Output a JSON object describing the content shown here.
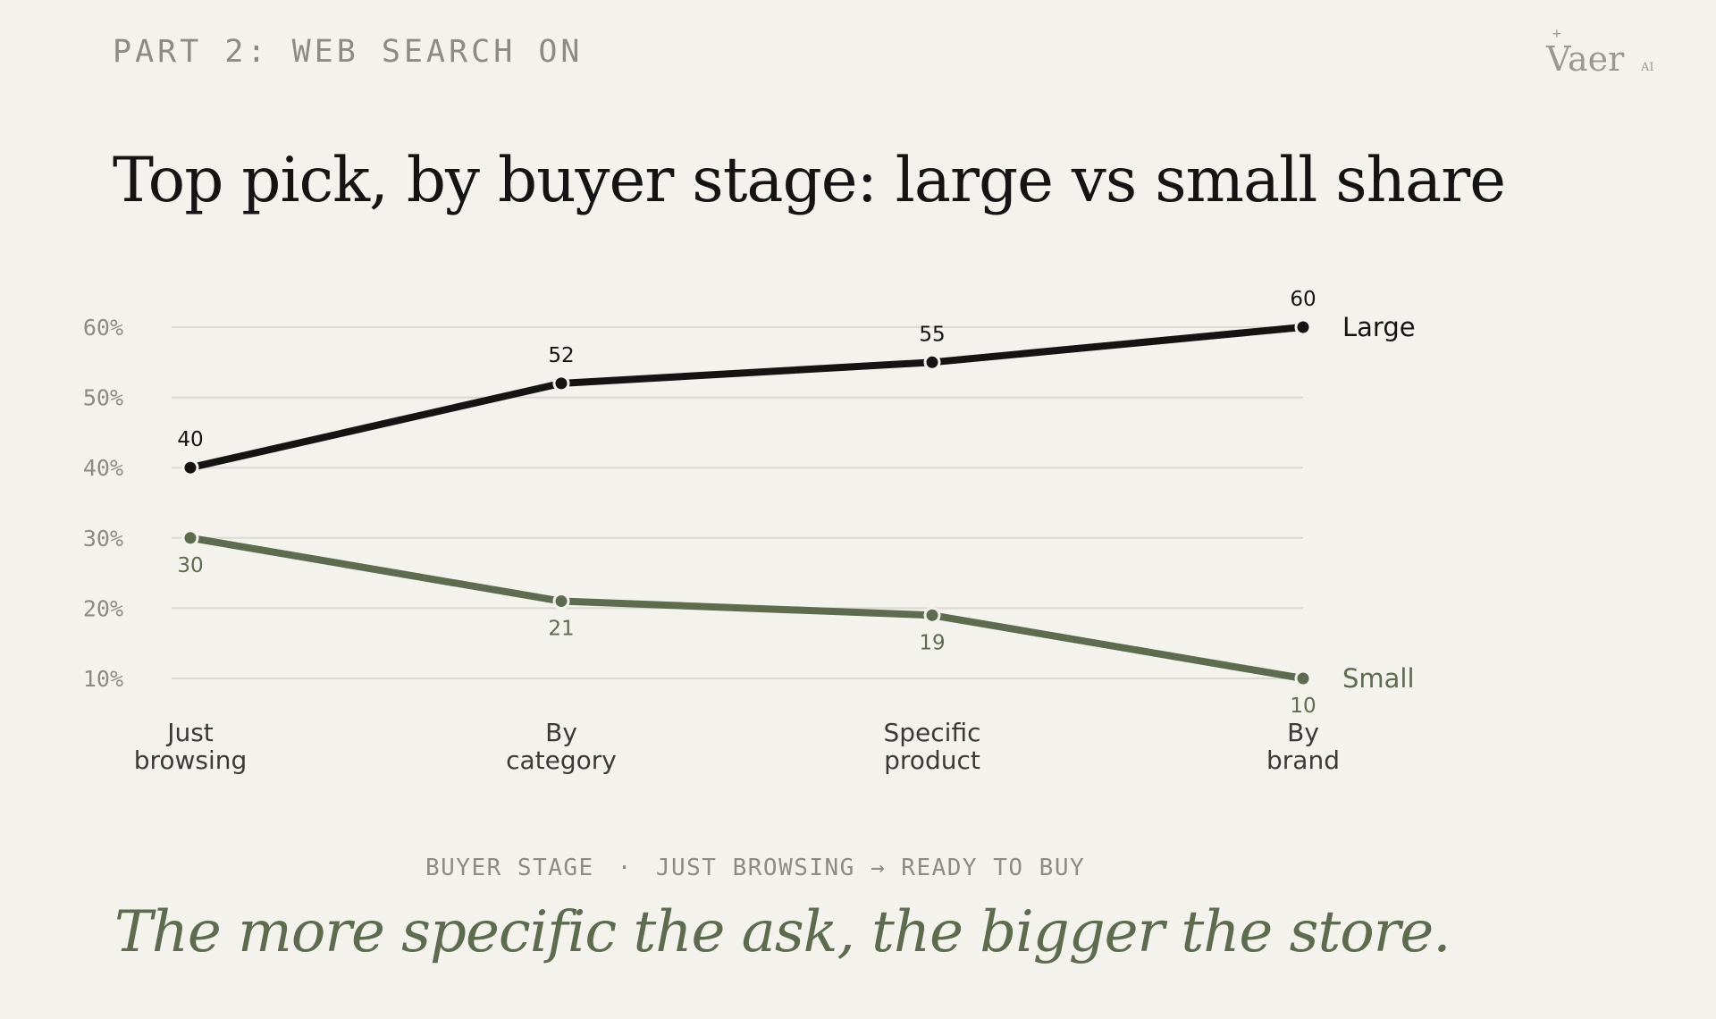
{
  "header": {
    "eyebrow": "PART 2: WEB SEARCH ON",
    "logo_text": "Vaer",
    "logo_superscript": "AI",
    "logo_mark": "+"
  },
  "title": "Top pick, by buyer stage: large vs small share",
  "chart_data": {
    "type": "line",
    "title": "Top pick, by buyer stage: large vs small share",
    "categories": [
      [
        "Just",
        "browsing"
      ],
      [
        "By",
        "category"
      ],
      [
        "Specific",
        "product"
      ],
      [
        "By",
        "brand"
      ]
    ],
    "series": [
      {
        "name": "Large",
        "values": [
          40,
          52,
          55,
          60
        ],
        "color": "#141414"
      },
      {
        "name": "Small",
        "values": [
          30,
          21,
          19,
          10
        ],
        "color": "#5d6b4f"
      }
    ],
    "yticks": [
      10,
      20,
      30,
      40,
      50,
      60
    ],
    "ytick_suffix": "%",
    "ylim": [
      10,
      60
    ],
    "grid": true,
    "legend": "direct labels at line ends",
    "xlabel": "BUYER STAGE",
    "xlabel_note": "JUST BROWSING → READY TO BUY"
  },
  "axis_note": {
    "label": "BUYER STAGE",
    "separator": "·",
    "range": "JUST BROWSING → READY TO BUY"
  },
  "takeaway": "The more specific the ask, the bigger the store.",
  "colors": {
    "background": "#f4f2ec",
    "large": "#141414",
    "small": "#5d6b4f",
    "grid": "#dcd9d2",
    "muted": "#8c8b87"
  }
}
